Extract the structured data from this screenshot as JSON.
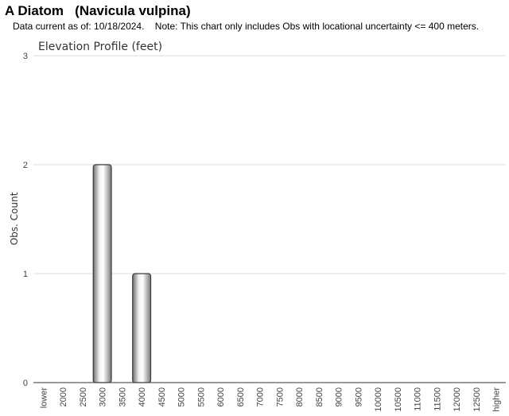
{
  "header": {
    "title": "A Diatom   (Navicula vulpina)",
    "subtitle": "Data current as of: 10/18/2024.    Note: This chart only includes Obs with locational uncertainty <= 400 meters."
  },
  "chart_data": {
    "type": "bar",
    "title": "Elevation Profile (feet)",
    "xlabel": "",
    "ylabel": "Obs. Count",
    "ylim": [
      0,
      3
    ],
    "yticks": [
      0,
      1,
      2,
      3
    ],
    "grid": true,
    "categories": [
      "lower",
      "2000",
      "2500",
      "3000",
      "3500",
      "4000",
      "4500",
      "5000",
      "5500",
      "6000",
      "6500",
      "7000",
      "7500",
      "8000",
      "8500",
      "9000",
      "9500",
      "10000",
      "10500",
      "11000",
      "11500",
      "12000",
      "12500",
      "higher"
    ],
    "values": [
      0,
      0,
      0,
      2,
      0,
      1,
      0,
      0,
      0,
      0,
      0,
      0,
      0,
      0,
      0,
      0,
      0,
      0,
      0,
      0,
      0,
      0,
      0,
      0
    ]
  }
}
